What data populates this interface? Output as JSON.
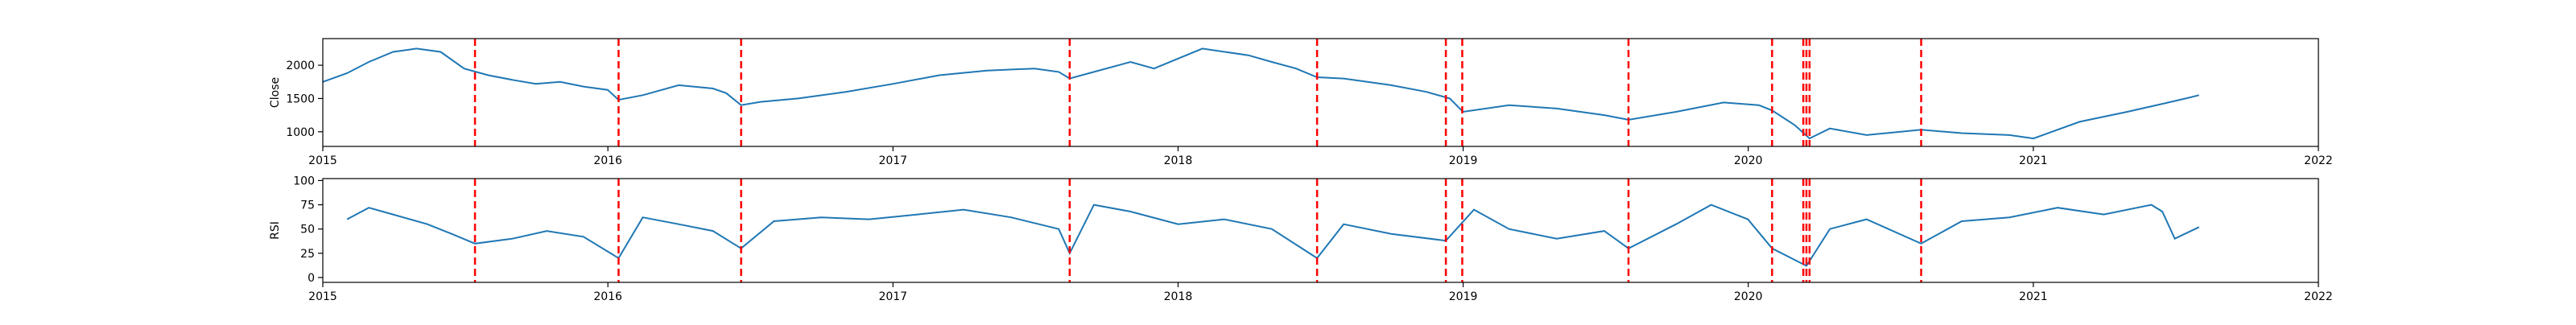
{
  "chart_data": [
    {
      "type": "line",
      "ylabel": "Close",
      "xlim": [
        "2015-01-01",
        "2022-01-01"
      ],
      "ylim": [
        780,
        2400
      ],
      "yticks": [
        1000,
        1500,
        2000
      ],
      "xtick_labels": [
        "2015",
        "2016",
        "2017",
        "2018",
        "2019",
        "2020",
        "2021",
        "2022"
      ],
      "series": [
        {
          "color": "#1f77b4",
          "x": [
            "2015-01-01",
            "2015-02-01",
            "2015-03-01",
            "2015-04-01",
            "2015-05-01",
            "2015-06-01",
            "2015-07-01",
            "2015-08-01",
            "2015-09-01",
            "2015-10-01",
            "2015-11-01",
            "2015-12-01",
            "2016-01-01",
            "2016-01-15",
            "2016-02-15",
            "2016-04-01",
            "2016-05-15",
            "2016-06-01",
            "2016-06-20",
            "2016-07-15",
            "2016-09-01",
            "2016-11-01",
            "2017-01-01",
            "2017-03-01",
            "2017-05-01",
            "2017-07-01",
            "2017-08-01",
            "2017-08-15",
            "2017-09-15",
            "2017-11-01",
            "2017-12-01",
            "2018-02-01",
            "2018-04-01",
            "2018-05-01",
            "2018-06-01",
            "2018-06-28",
            "2018-08-01",
            "2018-10-01",
            "2018-11-15",
            "2018-12-15",
            "2019-01-01",
            "2019-03-01",
            "2019-05-01",
            "2019-07-01",
            "2019-08-01",
            "2019-10-01",
            "2019-12-01",
            "2020-01-15",
            "2020-02-01",
            "2020-03-01",
            "2020-03-20",
            "2020-04-15",
            "2020-06-01",
            "2020-07-15",
            "2020-08-10",
            "2020-10-01",
            "2020-12-01",
            "2021-01-01",
            "2021-03-01",
            "2021-05-01",
            "2021-06-15",
            "2021-07-15",
            "2021-08-01"
          ],
          "y": [
            1750,
            1880,
            2050,
            2200,
            2250,
            2200,
            1950,
            1850,
            1780,
            1720,
            1750,
            1680,
            1630,
            1480,
            1550,
            1700,
            1650,
            1580,
            1400,
            1450,
            1500,
            1600,
            1720,
            1850,
            1920,
            1950,
            1900,
            1800,
            1900,
            2050,
            1950,
            2250,
            2150,
            2050,
            1950,
            1820,
            1800,
            1700,
            1600,
            1500,
            1300,
            1400,
            1350,
            1250,
            1180,
            1300,
            1440,
            1400,
            1320,
            1100,
            900,
            1050,
            950,
            1000,
            1030,
            980,
            950,
            900,
            1150,
            1300,
            1420,
            1500,
            1550
          ]
        }
      ],
      "event_lines": [
        "2015-07-15",
        "2016-01-15",
        "2016-06-20",
        "2017-08-15",
        "2018-06-28",
        "2018-12-10",
        "2018-12-31",
        "2019-08-01",
        "2020-02-01",
        "2020-03-12",
        "2020-03-16",
        "2020-03-20",
        "2020-08-10"
      ]
    },
    {
      "type": "line",
      "ylabel": "RSI",
      "xlim": [
        "2015-01-01",
        "2022-01-01"
      ],
      "ylim": [
        -5,
        102
      ],
      "yticks": [
        0,
        25,
        50,
        75,
        100
      ],
      "xtick_labels": [
        "2015",
        "2016",
        "2017",
        "2018",
        "2019",
        "2020",
        "2021",
        "2022"
      ],
      "series": [
        {
          "color": "#1f77b4",
          "x": [
            "2015-02-01",
            "2015-03-01",
            "2015-04-01",
            "2015-05-15",
            "2015-06-15",
            "2015-07-15",
            "2015-09-01",
            "2015-10-15",
            "2015-12-01",
            "2016-01-15",
            "2016-02-15",
            "2016-04-01",
            "2016-05-15",
            "2016-06-20",
            "2016-08-01",
            "2016-10-01",
            "2016-12-01",
            "2017-02-01",
            "2017-04-01",
            "2017-06-01",
            "2017-08-01",
            "2017-08-15",
            "2017-09-15",
            "2017-11-01",
            "2018-01-01",
            "2018-03-01",
            "2018-05-01",
            "2018-06-28",
            "2018-08-01",
            "2018-10-01",
            "2018-12-10",
            "2019-01-15",
            "2019-03-01",
            "2019-05-01",
            "2019-07-01",
            "2019-08-01",
            "2019-10-01",
            "2019-11-15",
            "2020-01-01",
            "2020-02-01",
            "2020-03-16",
            "2020-04-15",
            "2020-06-01",
            "2020-08-10",
            "2020-10-01",
            "2020-12-01",
            "2021-02-01",
            "2021-04-01",
            "2021-06-01",
            "2021-06-15",
            "2021-07-01",
            "2021-08-01"
          ],
          "y": [
            60,
            72,
            65,
            55,
            45,
            35,
            40,
            48,
            42,
            20,
            62,
            55,
            48,
            30,
            58,
            62,
            60,
            65,
            70,
            62,
            50,
            25,
            75,
            68,
            55,
            60,
            50,
            20,
            55,
            45,
            38,
            70,
            50,
            40,
            48,
            30,
            55,
            75,
            60,
            30,
            12,
            50,
            60,
            35,
            58,
            62,
            72,
            65,
            75,
            68,
            40,
            52
          ]
        }
      ],
      "event_lines": [
        "2015-07-15",
        "2016-01-15",
        "2016-06-20",
        "2017-08-15",
        "2018-06-28",
        "2018-12-10",
        "2018-12-31",
        "2019-08-01",
        "2020-02-01",
        "2020-03-12",
        "2020-03-16",
        "2020-03-20",
        "2020-08-10"
      ]
    }
  ]
}
